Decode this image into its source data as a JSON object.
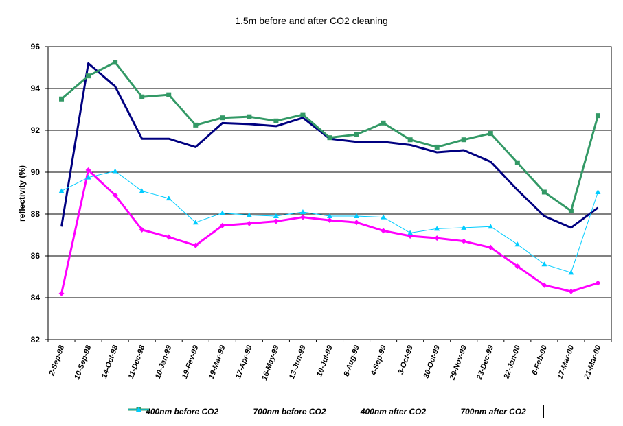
{
  "chart_data": {
    "type": "line",
    "title": "1.5m before and after CO2 cleaning",
    "xlabel": "",
    "ylabel": "reflectivity (%)",
    "ylim": [
      82,
      96
    ],
    "yticks": [
      "82",
      "84",
      "86",
      "88",
      "90",
      "92",
      "94",
      "96"
    ],
    "grid": true,
    "legend_position": "bottom",
    "categories": [
      "2-Sep-98",
      "10-Sep-98",
      "14-Oct-98",
      "11-Dec-98",
      "10-Jan-99",
      "19-Fev-99",
      "19-Mar-99",
      "17-Apr-99",
      "16-May-99",
      "13-Jun-99",
      "10-Jul-99",
      "8-Aug-99",
      "4-Sep-99",
      "3-Oct-99",
      "30-Oct-99",
      "29-Nov-99",
      "23-Dec-99",
      "22-Jan-00",
      "6-Feb-00",
      "17-Mar-00",
      "21-Mar-00"
    ],
    "series": [
      {
        "name": "400nm before CO2",
        "color": "#000080",
        "marker": "none",
        "values": [
          87.4,
          95.2,
          94.1,
          91.6,
          91.6,
          91.2,
          92.35,
          92.3,
          92.2,
          92.6,
          91.6,
          91.45,
          91.45,
          91.3,
          90.95,
          91.05,
          90.5,
          89.15,
          87.9,
          87.35,
          88.3
        ]
      },
      {
        "name": "700nm before CO2",
        "color": "#ff00ff",
        "marker": "diamond",
        "values": [
          84.2,
          90.1,
          88.9,
          87.25,
          86.9,
          86.5,
          87.45,
          87.55,
          87.65,
          87.85,
          87.7,
          87.6,
          87.2,
          86.95,
          86.85,
          86.7,
          86.4,
          85.5,
          84.6,
          84.3,
          84.7
        ]
      },
      {
        "name": "400nm after CO2",
        "color": "#339966",
        "marker": "square",
        "values": [
          93.5,
          94.6,
          95.25,
          93.6,
          93.7,
          92.25,
          92.6,
          92.65,
          92.45,
          92.75,
          91.65,
          91.8,
          92.35,
          91.55,
          91.2,
          91.55,
          91.85,
          90.45,
          89.05,
          88.15,
          92.7
        ]
      },
      {
        "name": "700nm after CO2",
        "color": "#00ccff",
        "marker": "triangle",
        "values": [
          89.1,
          89.75,
          90.05,
          89.1,
          88.75,
          87.6,
          88.05,
          87.95,
          87.9,
          88.1,
          87.9,
          87.9,
          87.85,
          87.1,
          87.3,
          87.35,
          87.4,
          86.55,
          85.6,
          85.2,
          89.05
        ]
      }
    ]
  }
}
